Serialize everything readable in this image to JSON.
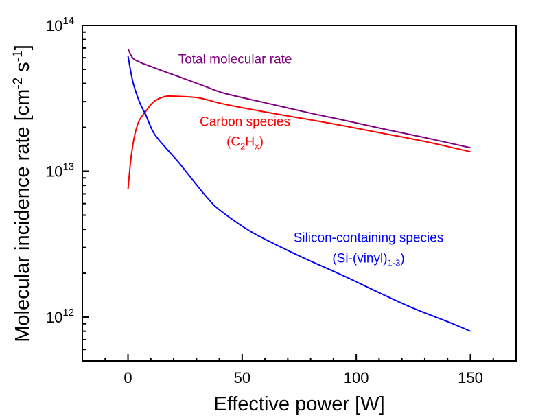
{
  "chart_data": {
    "type": "line",
    "title": "",
    "xlabel": "Effective power [W]",
    "ylabel": {
      "base": "Molecular incidence rate [cm",
      "sup1": "-2",
      "mid": " s",
      "sup2": "-1",
      "end": "]"
    },
    "xlim": [
      -20,
      170
    ],
    "ylim": [
      500000000000.0,
      100000000000000.0
    ],
    "yscale": "log",
    "grid": false,
    "x_major_ticks": [
      0,
      50,
      100,
      150
    ],
    "x_tick_labels": [
      "0",
      "50",
      "100",
      "150"
    ],
    "x_minor_step": 10,
    "y_major_ticks": [
      1000000000000.0,
      10000000000000.0,
      100000000000000.0
    ],
    "y_tick_labels": [
      {
        "base": "10",
        "exp": "12"
      },
      {
        "base": "10",
        "exp": "13"
      },
      {
        "base": "10",
        "exp": "14"
      }
    ],
    "legend": "none (inline annotations)",
    "series": [
      {
        "name": "Total molecular rate",
        "color": "#800080",
        "x": [
          0,
          2.2,
          5.2,
          7.2,
          16,
          22.2,
          34.3,
          42.3,
          60,
          80,
          94.4,
          110,
          130,
          150
        ],
        "y": [
          69000000000000.0,
          59400000000000.0,
          56000000000000.0,
          54300000000000.0,
          48200000000000.0,
          44500000000000.0,
          37900000000000.0,
          34200000000000.0,
          29500000000000.0,
          25000000000000.0,
          22400000000000.0,
          19800000000000.0,
          17000000000000.0,
          14500000000000.0
        ]
      },
      {
        "name": "Carbon species (C2Hx)",
        "color": "#ff0000",
        "x": [
          0,
          1.2,
          2.7,
          4.7,
          7.2,
          11.2,
          16,
          20.2,
          30,
          34.3,
          42.3,
          60,
          80,
          94.4,
          110,
          130,
          150
        ],
        "y": [
          7500000000000.0,
          11900000000000.0,
          17000000000000.0,
          21900000000000.0,
          25000000000000.0,
          29900000000000.0,
          32500000000000.0,
          32700000000000.0,
          32000000000000.0,
          31000000000000.0,
          28800000000000.0,
          25500000000000.0,
          22500000000000.0,
          20500000000000.0,
          18400000000000.0,
          16000000000000.0,
          13600000000000.0
        ]
      },
      {
        "name": "Silicon-containing species (Si-(vinyl)1-3)",
        "color": "#0000ff",
        "x": [
          0,
          2.2,
          5.2,
          7.7,
          11.2,
          16,
          22.2,
          26.2,
          34.3,
          40.3,
          54.3,
          74.3,
          94.4,
          110,
          124.4,
          140,
          150
        ],
        "y": [
          61700000000000.0,
          40600000000000.0,
          29400000000000.0,
          24500000000000.0,
          18400000000000.0,
          14800000000000.0,
          11500000000000.0,
          9600000000000.0,
          6700000000000.0,
          5400000000000.0,
          3820000000000.0,
          2660000000000.0,
          1920000000000.0,
          1470000000000.0,
          1160000000000.0,
          930000000000.0,
          800000000000.0
        ]
      }
    ],
    "annotations": [
      {
        "text": "Total molecular rate",
        "color": "#800080",
        "x": 22,
        "y": 59000000000000.0
      },
      {
        "line1": "Carbon species",
        "line2_pre": "(C",
        "line2_sub1": "2",
        "line2_mid": "H",
        "line2_sub2": "x",
        "line2_post": ")",
        "color": "#ff0000",
        "x": 26,
        "y": 20000000000000.0
      },
      {
        "line1": "Silicon-containing species",
        "line2_pre": "(Si-(vinyl)",
        "line2_sub": "1-3",
        "line2_post": ")",
        "color": "#0000ff",
        "x": 75,
        "y": 3100000000000.0
      }
    ]
  }
}
